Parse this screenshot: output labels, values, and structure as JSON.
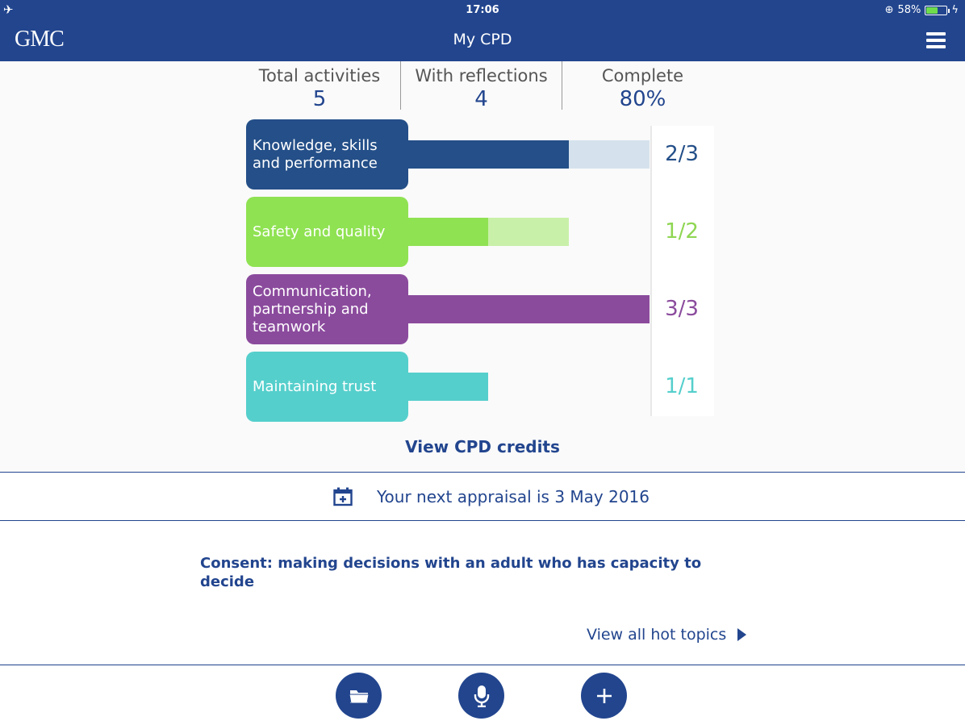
{
  "status": {
    "time": "17:06",
    "battery": "58%",
    "battery_level": 0.58
  },
  "header": {
    "logo": "GMC",
    "title": "My CPD"
  },
  "stats": [
    {
      "label": "Total activities",
      "value": "5"
    },
    {
      "label": "With reflections",
      "value": "4"
    },
    {
      "label": "Complete",
      "value": "80%"
    }
  ],
  "categories": [
    {
      "label": "Knowledge, skills and performance",
      "count": "2/3",
      "fraction": 0.667,
      "target_fraction": 1.0,
      "color": "#244f88",
      "light": "#d5e2ed",
      "count_color": "#244f88"
    },
    {
      "label": "Safety and quality",
      "count": "1/2",
      "fraction": 0.333,
      "target_fraction": 0.667,
      "color": "#8fe252",
      "light": "#c9f0a8",
      "count_color": "#8fd653"
    },
    {
      "label": "Communication, partnership and teamwork",
      "count": "3/3",
      "fraction": 1.0,
      "target_fraction": 1.0,
      "color": "#8b4b9d",
      "light": "#8b4b9d",
      "count_color": "#8b4b9d"
    },
    {
      "label": "Maintaining trust",
      "count": "1/1",
      "fraction": 0.333,
      "target_fraction": 0.333,
      "color": "#55cfcc",
      "light": "#55cfcc",
      "count_color": "#55cfcc"
    }
  ],
  "view_credits": "View CPD credits",
  "appraisal": {
    "text": "Your next appraisal is 3 May 2016",
    "icon": "calendar-add-icon"
  },
  "hot_topic": {
    "title": "Consent: making decisions with an adult who has capacity to decide",
    "link": "View all hot topics"
  },
  "bottom_actions": [
    {
      "icon": "folder-icon"
    },
    {
      "icon": "microphone-icon"
    },
    {
      "icon": "plus-icon"
    }
  ]
}
